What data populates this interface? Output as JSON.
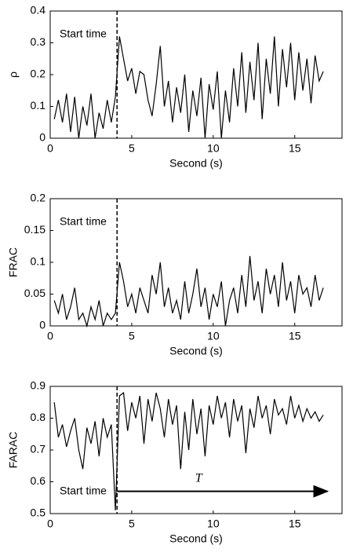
{
  "chart_data": [
    {
      "type": "line",
      "xlabel": "Second (s)",
      "ylabel": "ρ",
      "xlim": [
        0,
        17.9
      ],
      "xticks": [
        0,
        5,
        10,
        15
      ],
      "ylim": [
        0,
        0.4
      ],
      "yticks": [
        0,
        0.1,
        0.2,
        0.3,
        0.4
      ],
      "annotation": {
        "text": "Start time",
        "x": 4.1
      },
      "series": [
        {
          "color": "#000000",
          "x": [
            0.25,
            0.5,
            0.75,
            1,
            1.25,
            1.5,
            1.75,
            2,
            2.25,
            2.5,
            2.75,
            3,
            3.25,
            3.5,
            3.75,
            4,
            4.25,
            4.5,
            4.75,
            5,
            5.25,
            5.5,
            5.75,
            6,
            6.25,
            6.5,
            6.75,
            7,
            7.25,
            7.5,
            7.75,
            8,
            8.25,
            8.5,
            8.75,
            9,
            9.25,
            9.5,
            9.75,
            10,
            10.25,
            10.5,
            10.75,
            11,
            11.25,
            11.5,
            11.75,
            12,
            12.25,
            12.5,
            12.75,
            13,
            13.25,
            13.5,
            13.75,
            14,
            14.25,
            14.5,
            14.75,
            15,
            15.25,
            15.5,
            15.75,
            16,
            16.25,
            16.5,
            16.75
          ],
          "values": [
            0.06,
            0.12,
            0.05,
            0.14,
            0.02,
            0.13,
            0.0,
            0.1,
            0.04,
            0.14,
            0.0,
            0.08,
            0.03,
            0.12,
            0.05,
            0.13,
            0.32,
            0.25,
            0.18,
            0.22,
            0.14,
            0.21,
            0.2,
            0.12,
            0.07,
            0.17,
            0.29,
            0.1,
            0.18,
            0.05,
            0.16,
            0.08,
            0.2,
            0.02,
            0.15,
            0.07,
            0.19,
            0.0,
            0.17,
            0.09,
            0.21,
            0.0,
            0.15,
            0.05,
            0.22,
            0.1,
            0.27,
            0.08,
            0.24,
            0.12,
            0.3,
            0.06,
            0.25,
            0.14,
            0.32,
            0.1,
            0.28,
            0.16,
            0.3,
            0.12,
            0.27,
            0.15,
            0.25,
            0.11,
            0.26,
            0.18,
            0.21
          ]
        }
      ]
    },
    {
      "type": "line",
      "xlabel": "Second (s)",
      "ylabel": "FRAC",
      "xlim": [
        0,
        17.9
      ],
      "xticks": [
        0,
        5,
        10,
        15
      ],
      "ylim": [
        0,
        0.2
      ],
      "yticks": [
        0,
        0.05,
        0.1,
        0.15,
        0.2
      ],
      "annotation": {
        "text": "Start time",
        "x": 4.1
      },
      "series": [
        {
          "color": "#000000",
          "x": [
            0.25,
            0.5,
            0.75,
            1,
            1.25,
            1.5,
            1.75,
            2,
            2.25,
            2.5,
            2.75,
            3,
            3.25,
            3.5,
            3.75,
            4,
            4.25,
            4.5,
            4.75,
            5,
            5.25,
            5.5,
            5.75,
            6,
            6.25,
            6.5,
            6.75,
            7,
            7.25,
            7.5,
            7.75,
            8,
            8.25,
            8.5,
            8.75,
            9,
            9.25,
            9.5,
            9.75,
            10,
            10.25,
            10.5,
            10.75,
            11,
            11.25,
            11.5,
            11.75,
            12,
            12.25,
            12.5,
            12.75,
            13,
            13.25,
            13.5,
            13.75,
            14,
            14.25,
            14.5,
            14.75,
            15,
            15.25,
            15.5,
            15.75,
            16,
            16.25,
            16.5,
            16.75
          ],
          "values": [
            0.04,
            0.02,
            0.05,
            0.01,
            0.03,
            0.06,
            0.01,
            0.02,
            0.0,
            0.03,
            0.01,
            0.04,
            0.0,
            0.02,
            0.01,
            0.02,
            0.1,
            0.07,
            0.03,
            0.05,
            0.02,
            0.06,
            0.04,
            0.02,
            0.08,
            0.05,
            0.1,
            0.03,
            0.06,
            0.02,
            0.04,
            0.01,
            0.07,
            0.02,
            0.05,
            0.09,
            0.03,
            0.06,
            0.01,
            0.05,
            0.03,
            0.07,
            0.0,
            0.04,
            0.06,
            0.02,
            0.08,
            0.03,
            0.11,
            0.04,
            0.07,
            0.02,
            0.09,
            0.05,
            0.08,
            0.03,
            0.1,
            0.04,
            0.07,
            0.02,
            0.08,
            0.05,
            0.06,
            0.03,
            0.08,
            0.04,
            0.06
          ]
        }
      ]
    },
    {
      "type": "line",
      "xlabel": "Second (s)",
      "ylabel": "FARAC",
      "xlim": [
        0,
        17.9
      ],
      "xticks": [
        0,
        5,
        10,
        15
      ],
      "ylim": [
        0.5,
        0.9
      ],
      "yticks": [
        0.5,
        0.6,
        0.7,
        0.8,
        0.9
      ],
      "annotation": {
        "text": "Start time",
        "x": 4.1
      },
      "arrow": {
        "label": "T",
        "x": [
          4.1,
          17
        ],
        "y": 0.57
      },
      "series": [
        {
          "color": "#000000",
          "x": [
            0.25,
            0.5,
            0.75,
            1,
            1.25,
            1.5,
            1.75,
            2,
            2.25,
            2.5,
            2.75,
            3,
            3.25,
            3.5,
            3.75,
            4,
            4.25,
            4.5,
            4.75,
            5,
            5.25,
            5.5,
            5.75,
            6,
            6.25,
            6.5,
            6.75,
            7,
            7.25,
            7.5,
            7.75,
            8,
            8.25,
            8.5,
            8.75,
            9,
            9.25,
            9.5,
            9.75,
            10,
            10.25,
            10.5,
            10.75,
            11,
            11.25,
            11.5,
            11.75,
            12,
            12.25,
            12.5,
            12.75,
            13,
            13.25,
            13.5,
            13.75,
            14,
            14.25,
            14.5,
            14.75,
            15,
            15.25,
            15.5,
            15.75,
            16,
            16.25,
            16.5,
            16.75
          ],
          "values": [
            0.85,
            0.74,
            0.78,
            0.71,
            0.76,
            0.8,
            0.7,
            0.64,
            0.77,
            0.72,
            0.79,
            0.68,
            0.8,
            0.74,
            0.78,
            0.51,
            0.87,
            0.88,
            0.76,
            0.85,
            0.8,
            0.87,
            0.72,
            0.86,
            0.79,
            0.88,
            0.83,
            0.74,
            0.86,
            0.78,
            0.84,
            0.64,
            0.82,
            0.7,
            0.86,
            0.75,
            0.83,
            0.68,
            0.84,
            0.78,
            0.87,
            0.8,
            0.85,
            0.74,
            0.86,
            0.79,
            0.84,
            0.69,
            0.83,
            0.77,
            0.87,
            0.8,
            0.84,
            0.75,
            0.86,
            0.81,
            0.83,
            0.78,
            0.87,
            0.8,
            0.84,
            0.79,
            0.83,
            0.8,
            0.82,
            0.79,
            0.81
          ]
        }
      ]
    }
  ]
}
